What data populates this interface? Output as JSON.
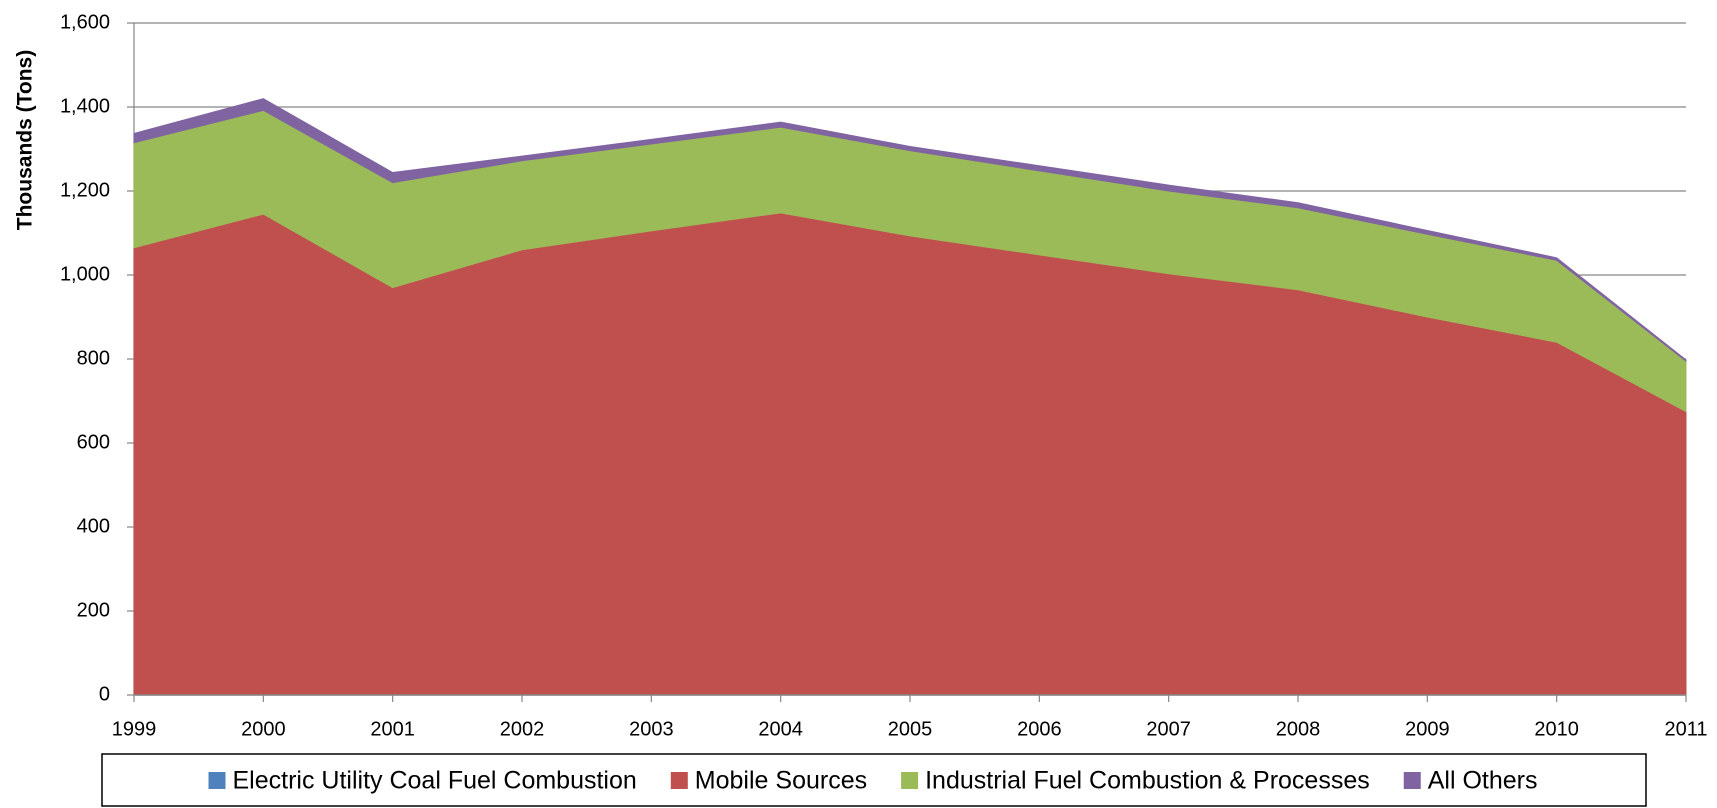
{
  "chart_data": {
    "type": "stacked-area",
    "y_label": "Thousands (Tons)",
    "x": [
      1999,
      2000,
      2001,
      2002,
      2003,
      2004,
      2005,
      2006,
      2007,
      2008,
      2009,
      2010,
      2011
    ],
    "xlim": [
      1999,
      2011
    ],
    "series": [
      {
        "name": "Electric Utility Coal Fuel Combustion",
        "color": "#4f81bd",
        "values": [
          0,
          0,
          0,
          0,
          0,
          0,
          0,
          0,
          0,
          0,
          0,
          0,
          0
        ]
      },
      {
        "name": "Mobile Sources",
        "color": "#c0504d",
        "values": [
          1065,
          1145,
          970,
          1060,
          1105,
          1148,
          1093,
          1048,
          1003,
          965,
          900,
          840,
          675
        ]
      },
      {
        "name": "Industrial Fuel Combustion & Processes",
        "color": "#9bbb59",
        "values": [
          250,
          247,
          250,
          212,
          207,
          204,
          203,
          200,
          197,
          195,
          197,
          195,
          120
        ]
      },
      {
        "name": "All Others",
        "color": "#8064a2",
        "values": [
          22,
          28,
          24,
          11,
          11,
          12,
          10,
          12,
          14,
          12,
          9,
          6,
          3
        ]
      }
    ],
    "ylim": [
      0,
      1600
    ],
    "yticks": [
      0,
      200,
      400,
      600,
      800,
      {
        "value": 1000,
        "label": "1,000"
      },
      {
        "value": 1200,
        "label": "1,200"
      },
      {
        "value": 1400,
        "label": "1,400"
      },
      {
        "value": 1600,
        "label": "1,600"
      }
    ],
    "grid": true
  }
}
